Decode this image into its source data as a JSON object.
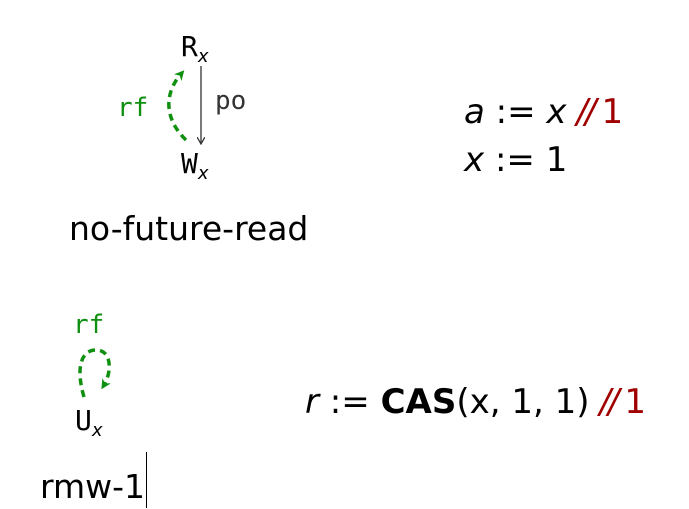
{
  "colors": {
    "rf_edge": "#109010",
    "po_edge": "#333333",
    "comment_value": "#a00000"
  },
  "no_future_read": {
    "node_top": {
      "letter": "R",
      "sub": "x"
    },
    "node_bottom": {
      "letter": "W",
      "sub": "x"
    },
    "rf_label": "rf",
    "po_label": "po",
    "caption": "no-future-read",
    "code": {
      "line1": {
        "lhs": "a",
        "assign": ":=",
        "rhs": "x",
        "comment": "//",
        "value": "1"
      },
      "line2": {
        "lhs": "x",
        "assign": ":=",
        "rhs": "1"
      }
    }
  },
  "rmw_1": {
    "node": {
      "letter": "U",
      "sub": "x"
    },
    "rf_label": "rf",
    "caption": "rmw-1",
    "code": {
      "lhs": "r",
      "assign": ":=",
      "fn": "CAS",
      "args": "(x, 1, 1)",
      "comment": "//",
      "value": "1"
    }
  }
}
